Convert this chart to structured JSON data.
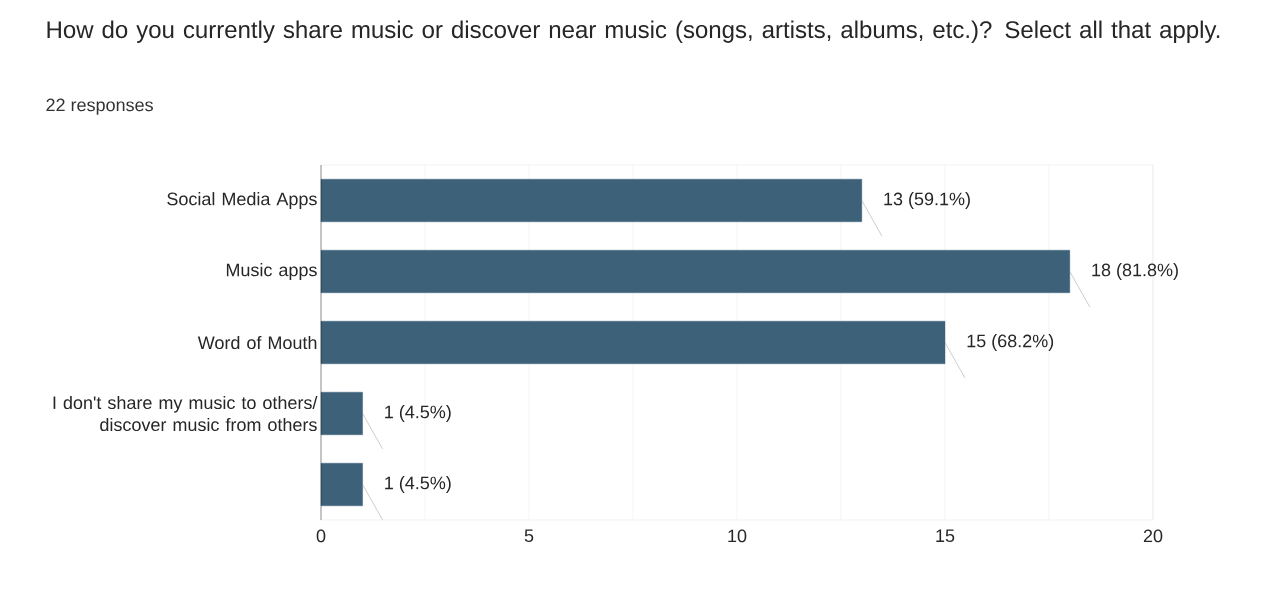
{
  "chart_data": {
    "type": "bar",
    "orientation": "horizontal",
    "title": "How do you currently share music or discover near music (songs, artists, albums, etc.)?    Select all that apply.",
    "subtitle": "22 responses",
    "categories": [
      "Social Media Apps",
      "Music apps",
      "Word of Mouth",
      "I don't share my music to others/ discover music from others",
      null
    ],
    "values": [
      13,
      18,
      15,
      1,
      1
    ],
    "value_labels": [
      "13 (59.1%)",
      "18 (81.8%)",
      "15 (68.2%)",
      "1 (4.5%)",
      "1 (4.5%)"
    ],
    "color": "#3d6179",
    "xlim": [
      0,
      20
    ],
    "xticks": [
      0,
      {
        "value": 2.5,
        "label": null
      },
      5,
      {
        "value": 7.5,
        "label": null
      },
      10,
      {
        "value": 12.5,
        "label": null
      },
      15,
      {
        "value": 17.5,
        "label": null
      },
      20
    ],
    "grid": "x"
  }
}
